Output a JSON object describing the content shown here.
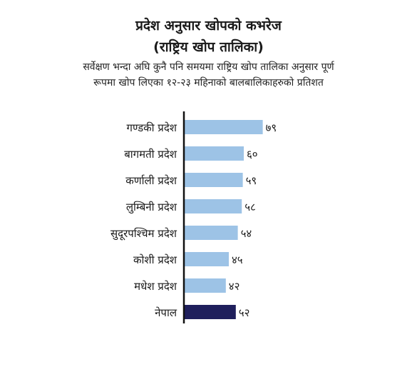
{
  "header": {
    "title_line1": "प्रदेश अनुसार खोपको कभरेज",
    "title_line2": "(राष्ट्रिय खोप तालिका)",
    "subtitle_line1": "सर्वेक्षण भन्दा अघि कुनै पनि समयमा राष्ट्रिय खोप तालिका अनुसार पूर्ण",
    "subtitle_line2": "रूपमा खोप लिएका १२-२३ महिनाको बालबालिकाहरुको प्रतिशत"
  },
  "chart_data": {
    "type": "bar",
    "orientation": "horizontal",
    "categories": [
      "गण्डकी प्रदेश",
      "बागमती प्रदेश",
      "कर्णाली प्रदेश",
      "लुम्बिनी प्रदेश",
      "सुदूरपश्चिम प्रदेश",
      "कोशी प्रदेश",
      "मधेश प्रदेश",
      "नेपाल"
    ],
    "values": [
      79,
      60,
      59,
      58,
      54,
      45,
      42,
      52
    ],
    "value_labels": [
      "७९",
      "६०",
      "५९",
      "५८",
      "५४",
      "४५",
      "४२",
      "५२"
    ],
    "xlim": [
      0,
      100
    ],
    "grid": false,
    "colors": {
      "province": "#9dc3e6",
      "national": "#1f1f5c",
      "axis": "#111111"
    }
  }
}
